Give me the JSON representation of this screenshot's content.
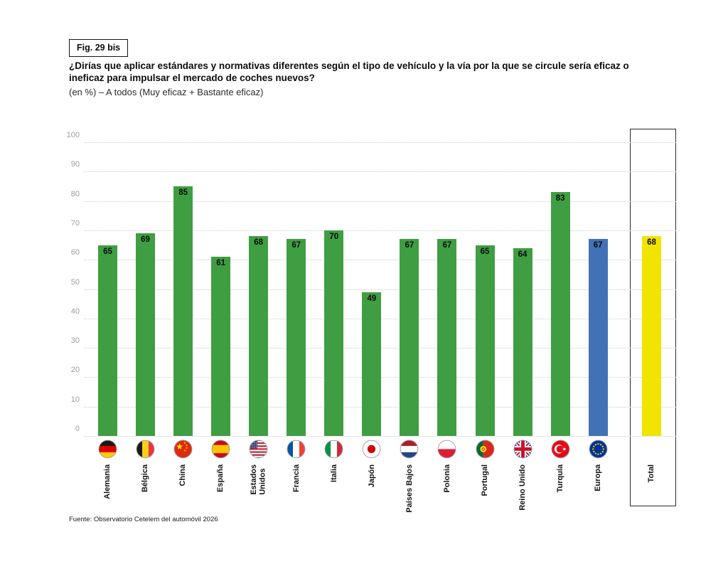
{
  "header": {
    "fig_label": "Fig. 29 bis"
  },
  "chart_data": {
    "type": "bar",
    "title": "¿Dirías que aplicar estándares y normativas diferentes según el tipo de vehículo y la vía por la que se circule sería eficaz o ineficaz para impulsar el mercado de coches nuevos?",
    "subtitle": "(en %) – A todos (Muy eficaz + Bastante eficaz)",
    "categories": [
      "Alemania",
      "Bélgica",
      "China",
      "España",
      "Estados\nUnidos",
      "Francia",
      "Italia",
      "Japón",
      "Países Bajos",
      "Polonia",
      "Portugal",
      "Reino Unido",
      "Turquía",
      "Europa",
      "Total"
    ],
    "values": [
      65,
      69,
      85,
      61,
      68,
      67,
      70,
      49,
      67,
      67,
      65,
      64,
      83,
      67,
      68
    ],
    "flags": [
      "flag-germany",
      "flag-belgium",
      "flag-china",
      "flag-spain",
      "flag-usa",
      "flag-france",
      "flag-italy",
      "flag-japan",
      "flag-netherlands",
      "flag-poland",
      "flag-portugal",
      "flag-uk",
      "flag-turkey",
      "flag-eu",
      "none"
    ],
    "bar_color_roles": [
      "country",
      "country",
      "country",
      "country",
      "country",
      "country",
      "country",
      "country",
      "country",
      "country",
      "country",
      "country",
      "country",
      "europe",
      "total"
    ],
    "colors": {
      "country": "#3f9e42",
      "europe": "#4271b6",
      "total": "#f0e400",
      "value_label": "#0b0b0d",
      "grid": "#c9c9c9",
      "tick_label": "#9c9c9c"
    },
    "ylim": [
      0,
      100
    ],
    "yticks": [
      0,
      10,
      20,
      30,
      40,
      50,
      60,
      70,
      80,
      90,
      100
    ],
    "grid": "horizontal-dotted",
    "legend": "none",
    "value_labels": "inside-top",
    "highlighted_category": "Total"
  },
  "footer": {
    "source": "Fuente: Observatorio Cetelem del automóvil 2026"
  }
}
